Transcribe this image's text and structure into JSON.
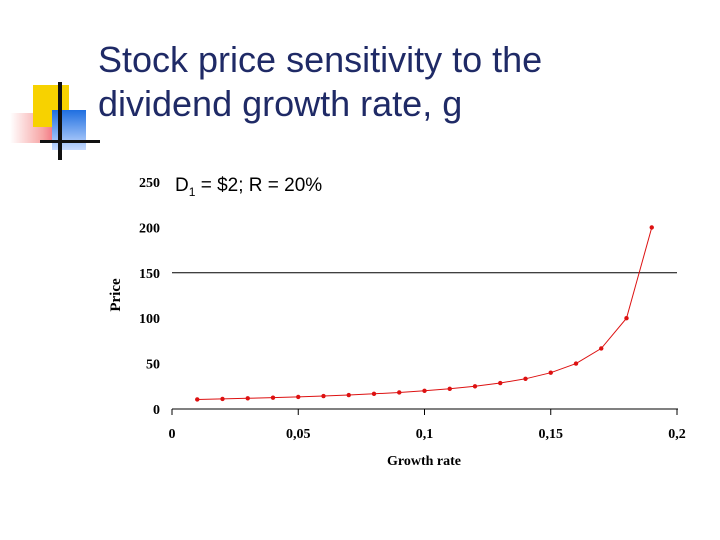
{
  "slide": {
    "title_line1": "Stock price sensitivity to the",
    "title_line2": "dividend growth rate, g"
  },
  "chart_data": {
    "type": "line",
    "annotation": {
      "prefix": "D",
      "subscript": "1",
      "rest": " = $2; R = 20%"
    },
    "xlabel": "Growth rate",
    "ylabel": "Price",
    "xlim": [
      0,
      0.2
    ],
    "ylim": [
      0,
      250
    ],
    "x_ticks": [
      {
        "value": 0,
        "label": "0"
      },
      {
        "value": 0.05,
        "label": "0,05"
      },
      {
        "value": 0.1,
        "label": "0,1"
      },
      {
        "value": 0.15,
        "label": "0,15"
      },
      {
        "value": 0.2,
        "label": "0,2"
      }
    ],
    "y_ticks": [
      {
        "value": 0,
        "label": "0"
      },
      {
        "value": 50,
        "label": "50"
      },
      {
        "value": 100,
        "label": "100"
      },
      {
        "value": 150,
        "label": "150"
      },
      {
        "value": 200,
        "label": "200"
      },
      {
        "value": 250,
        "label": "250"
      }
    ],
    "reference_line_y": 150,
    "series": [
      {
        "color": "#dd1111",
        "x": [
          0.01,
          0.02,
          0.03,
          0.04,
          0.05,
          0.06,
          0.07,
          0.08,
          0.09,
          0.1,
          0.11,
          0.12,
          0.13,
          0.14,
          0.15,
          0.16,
          0.17,
          0.18,
          0.19
        ],
        "y": [
          10.5,
          11.1,
          11.8,
          12.5,
          13.3,
          14.3,
          15.4,
          16.7,
          18.2,
          20.0,
          22.2,
          25.0,
          28.6,
          33.3,
          40.0,
          50.0,
          66.7,
          100.0,
          200.0
        ]
      }
    ]
  }
}
